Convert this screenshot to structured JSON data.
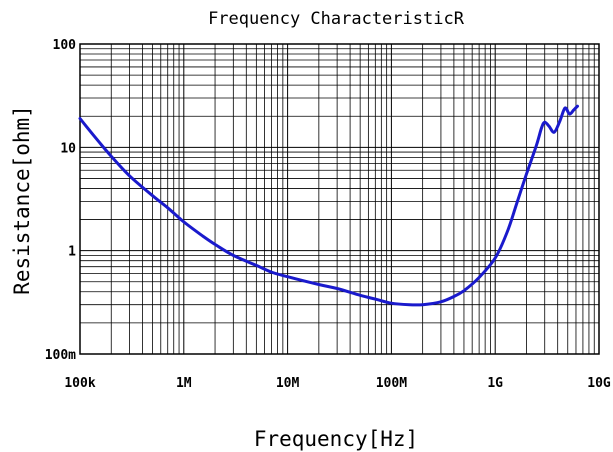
{
  "chart_data": {
    "type": "line",
    "title": "Frequency  CharacteristicR",
    "xlabel": "Frequency[Hz]",
    "ylabel": "Resistance[ohm]",
    "x_scale": "log",
    "y_scale": "log",
    "xlim": [
      100000,
      10000000000
    ],
    "ylim": [
      0.1,
      100
    ],
    "grid": true,
    "line_color": "#1a1acc",
    "x_ticks": [
      {
        "value": 100000,
        "label": "100k"
      },
      {
        "value": 1000000,
        "label": "1M"
      },
      {
        "value": 10000000,
        "label": "10M"
      },
      {
        "value": 100000000,
        "label": "100M"
      },
      {
        "value": 1000000000,
        "label": "1G"
      },
      {
        "value": 10000000000,
        "label": "10G"
      }
    ],
    "y_ticks": [
      {
        "value": 100,
        "label": "100"
      },
      {
        "value": 10,
        "label": "10"
      },
      {
        "value": 1,
        "label": "1"
      },
      {
        "value": 0.1,
        "label": "100m"
      }
    ],
    "series": [
      {
        "x": [
          100000,
          150000,
          200000,
          300000,
          500000,
          700000,
          1000000,
          1500000,
          2000000,
          3000000,
          5000000,
          7000000,
          10000000,
          20000000,
          30000000,
          50000000,
          70000000,
          100000000,
          150000000,
          200000000,
          300000000,
          400000000,
          500000000,
          700000000,
          1000000000,
          1300000000,
          1600000000,
          2000000000,
          2500000000,
          2800000000,
          3000000000,
          3300000000,
          3700000000,
          4200000000,
          4700000000,
          5200000000,
          5700000000,
          6200000000
        ],
        "y": [
          19,
          11.5,
          8.2,
          5.3,
          3.4,
          2.6,
          1.9,
          1.4,
          1.15,
          0.9,
          0.72,
          0.62,
          0.56,
          0.47,
          0.43,
          0.37,
          0.34,
          0.31,
          0.3,
          0.3,
          0.32,
          0.36,
          0.41,
          0.55,
          0.85,
          1.5,
          2.8,
          5.5,
          10.5,
          15.5,
          17.5,
          16,
          14,
          18,
          24,
          21,
          23,
          25
        ]
      }
    ]
  }
}
